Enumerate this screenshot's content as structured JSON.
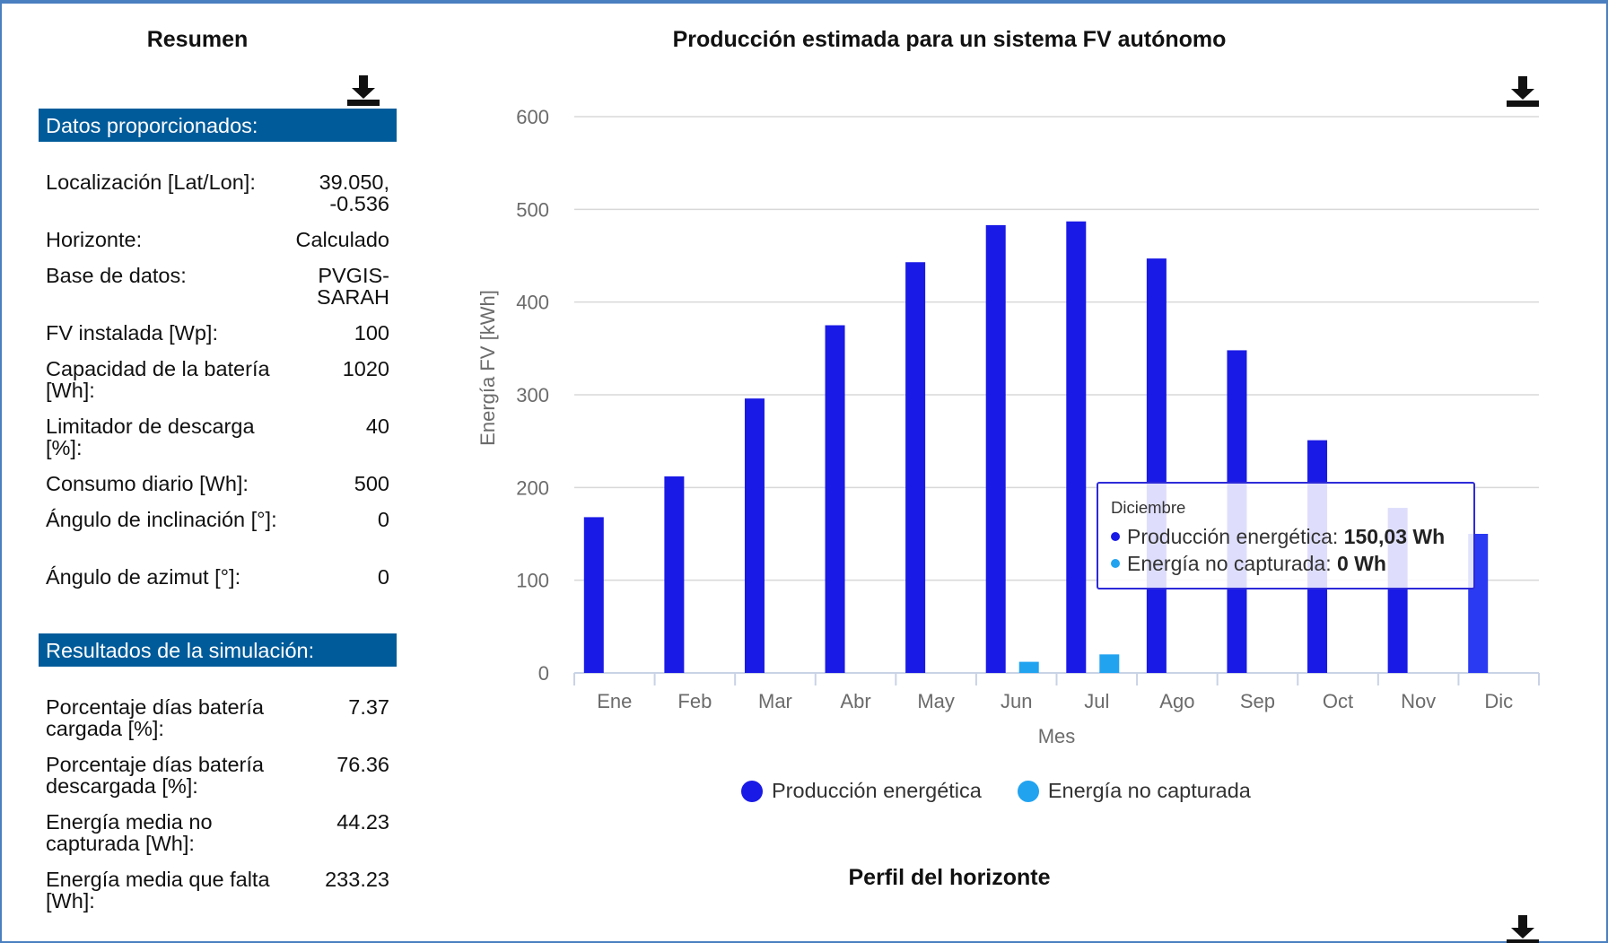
{
  "summary": {
    "title": "Resumen",
    "input_header": "Datos proporcionados:",
    "inputs": [
      {
        "label": "Localización [Lat/Lon]:",
        "value": "39.050,\n-0.536"
      },
      {
        "label": "Horizonte:",
        "value": "Calculado"
      },
      {
        "label": "Base de datos:",
        "value": "PVGIS-\nSARAH"
      },
      {
        "label": "FV instalada [Wp]:",
        "value": "100"
      },
      {
        "label": "Capacidad de la batería [Wh]:",
        "value": "1020"
      },
      {
        "label": "Limitador de descarga [%]:",
        "value": "40"
      },
      {
        "label": "Consumo diario [Wh]:",
        "value": "500"
      },
      {
        "label": "Ángulo de inclinación [°]:",
        "value": "0"
      },
      {
        "label": "Ángulo de azimut [°]:",
        "value": "0"
      }
    ],
    "results_header": "Resultados de la simulación:",
    "results": [
      {
        "label": "Porcentaje días batería cargada [%]:",
        "value": "7.37"
      },
      {
        "label": "Porcentaje días batería descargada [%]:",
        "value": "76.36"
      },
      {
        "label": "Energía media no capturada [Wh]:",
        "value": "44.23"
      },
      {
        "label": "Energía media que falta [Wh]:",
        "value": "233.23"
      }
    ]
  },
  "chart_title": "Producción estimada para un sistema FV autónomo",
  "horizon_title": "Perfil del horizonte",
  "tooltip": {
    "title": "Diciembre",
    "row1_label": "Producción energética: ",
    "row1_value": "150,03 Wh",
    "row2_label": "Energía no capturada: ",
    "row2_value": "0 Wh"
  },
  "colors": {
    "production": "#1a1ae6",
    "uncaptured": "#21a3f0",
    "header_bg": "#005b9a"
  },
  "icons": [
    "download-icon"
  ],
  "chart_data": {
    "type": "bar",
    "categories": [
      "Ene",
      "Feb",
      "Mar",
      "Abr",
      "May",
      "Jun",
      "Jul",
      "Ago",
      "Sep",
      "Oct",
      "Nov",
      "Dic"
    ],
    "series": [
      {
        "name": "Producción energética",
        "values": [
          168,
          212,
          296,
          375,
          443,
          483,
          487,
          447,
          348,
          251,
          178,
          150
        ]
      },
      {
        "name": "Energía no capturada",
        "values": [
          0,
          0,
          0,
          0,
          0,
          12,
          20,
          0,
          0,
          0,
          0,
          0
        ]
      }
    ],
    "xlabel": "Mes",
    "ylabel": "Energía FV [kWh]",
    "ylim": [
      0,
      600
    ],
    "yticks": [
      0,
      100,
      200,
      300,
      400,
      500,
      600
    ],
    "grid": true,
    "legend": "bottom"
  }
}
